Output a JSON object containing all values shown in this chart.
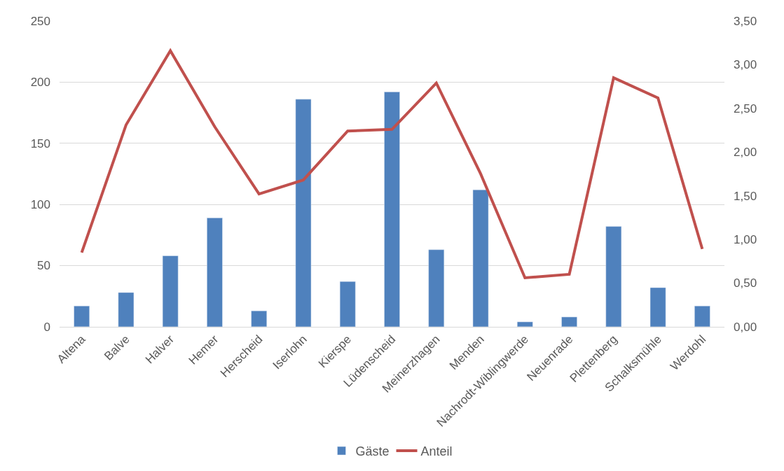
{
  "chart_data": {
    "type": "bar",
    "categories": [
      "Altena",
      "Balve",
      "Halver",
      "Hemer",
      "Herscheid",
      "Iserlohn",
      "Kierspe",
      "Lüdenscheid",
      "Meinerzhagen",
      "Menden",
      "Nachrodt-Wiblingwerde",
      "Neuenrade",
      "Plettenberg",
      "Schalksmühle",
      "Werdohl"
    ],
    "series": [
      {
        "name": "Gäste",
        "color": "#4f81bd",
        "values": [
          17,
          28,
          58,
          89,
          13,
          186,
          37,
          192,
          63,
          112,
          4,
          8,
          82,
          32,
          17
        ]
      },
      {
        "name": "Anteil",
        "type": "line",
        "axis": "y2",
        "color": "#c0504d",
        "values": [
          0.85,
          2.31,
          3.16,
          2.29,
          1.52,
          1.68,
          2.24,
          2.26,
          2.79,
          1.75,
          0.56,
          0.6,
          2.85,
          2.62,
          0.89
        ]
      }
    ],
    "ylim": [
      0,
      250
    ],
    "yticks": [
      0,
      50,
      100,
      150,
      200,
      250
    ],
    "y2lim": [
      0,
      3.5
    ],
    "y2ticks": [
      {
        "value": 0,
        "label": "0,00"
      },
      {
        "value": 0.5,
        "label": "0,50"
      },
      {
        "value": 1,
        "label": "1,00"
      },
      {
        "value": 1.5,
        "label": "1,50"
      },
      {
        "value": 2,
        "label": "2,00"
      },
      {
        "value": 2.5,
        "label": "2,50"
      },
      {
        "value": 3,
        "label": "3,00"
      },
      {
        "value": 3.5,
        "label": "3,50"
      }
    ],
    "grid": "y",
    "legend": "bottom",
    "marker": "none",
    "line_style": "solid"
  }
}
